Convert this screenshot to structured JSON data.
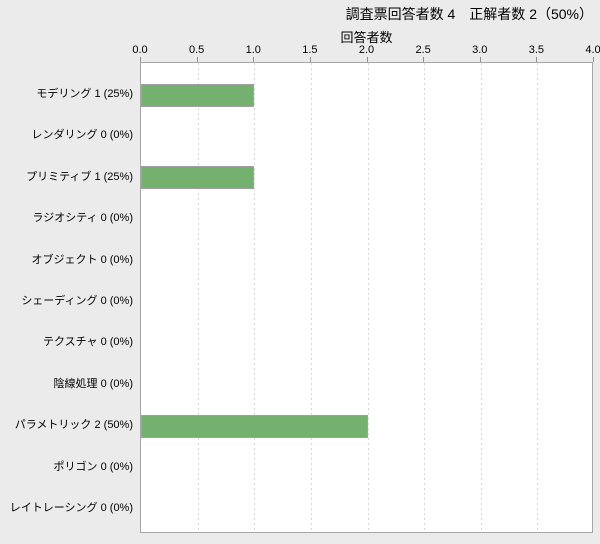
{
  "title": "調査票回答者数 4　正解者数 2（50%）",
  "chart_data": {
    "type": "bar",
    "orientation": "horizontal",
    "title": "調査票回答者数 4　正解者数 2（50%）",
    "xlabel": "回答者数",
    "xlabel_position": "top",
    "categories": [
      "モデリング 1 (25%)",
      "レンダリング 0 (0%)",
      "プリミティブ 1 (25%)",
      "ラジオシティ 0 (0%)",
      "オブジェクト 0 (0%)",
      "シェーディング 0 (0%)",
      "テクスチャ 0 (0%)",
      "陰線処理 0 (0%)",
      "パラメトリック 2 (50%)",
      "ポリゴン 0 (0%)",
      "レイトレーシング 0 (0%)"
    ],
    "values": [
      1,
      0,
      1,
      0,
      0,
      0,
      0,
      0,
      2,
      0,
      0
    ],
    "xlim": [
      0,
      4
    ],
    "xticks": [
      0,
      0.5,
      1,
      1.5,
      2,
      2.5,
      3,
      3.5,
      4
    ],
    "xtick_labels": [
      "0.0",
      "0.5",
      "1.0",
      "1.5",
      "2.0",
      "2.5",
      "3.0",
      "3.5",
      "4.0"
    ],
    "grid": "vertical-dashed",
    "legend": "none",
    "colors": {
      "bar_fill": "#74b06e",
      "bar_border": "#a0a0a0",
      "figure_bg": "#ebebeb",
      "plot_bg": "#ffffff",
      "plot_border": "#a6a6a6",
      "gridline": "#d6d6d6",
      "text": "#000000"
    }
  }
}
